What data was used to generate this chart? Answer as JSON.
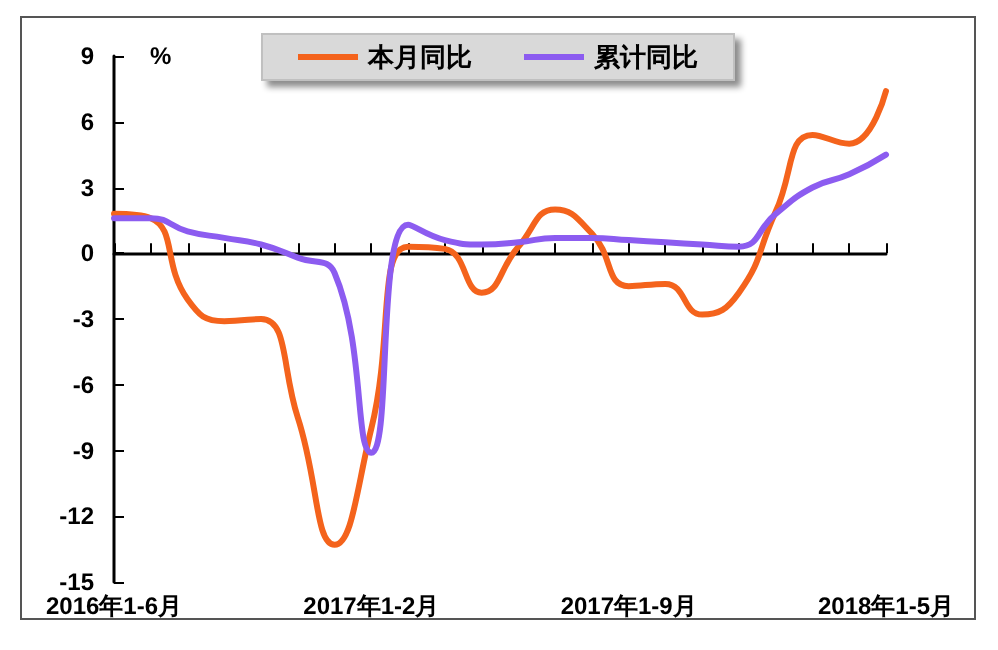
{
  "chart_data": {
    "type": "line",
    "ylabel": "%",
    "categories": [
      "2016年1-6月",
      null,
      null,
      null,
      null,
      null,
      null,
      "2017年1-2月",
      null,
      null,
      null,
      null,
      null,
      null,
      "2017年1-9月",
      null,
      null,
      null,
      null,
      null,
      null,
      "2018年1-5月"
    ],
    "series": [
      {
        "name": "本月同比",
        "color": "#f4631c",
        "values": [
          1.8,
          1.6,
          -2.1,
          -3.1,
          -3.0,
          -7.5,
          -13.3,
          -8.0,
          0.3,
          0.2,
          -1.8,
          0.3,
          2.0,
          0.9,
          -1.5,
          -1.4,
          -2.8,
          -1.8,
          1.9,
          5.4,
          5.0,
          7.4
        ]
      },
      {
        "name": "累计同比",
        "color": "#8c5cf0",
        "values": [
          1.6,
          1.6,
          1.0,
          0.7,
          0.4,
          -0.2,
          -0.9,
          -9.1,
          1.3,
          0.6,
          0.4,
          0.5,
          0.7,
          0.7,
          0.6,
          0.5,
          0.4,
          0.3,
          1.8,
          3.0,
          3.6,
          4.5
        ]
      }
    ],
    "ylim": [
      -15,
      9
    ],
    "yticks": [
      -15,
      -12,
      -9,
      -6,
      -3,
      0,
      3,
      6,
      9
    ],
    "legend": "top",
    "marker": "none",
    "line_style": "solid"
  }
}
